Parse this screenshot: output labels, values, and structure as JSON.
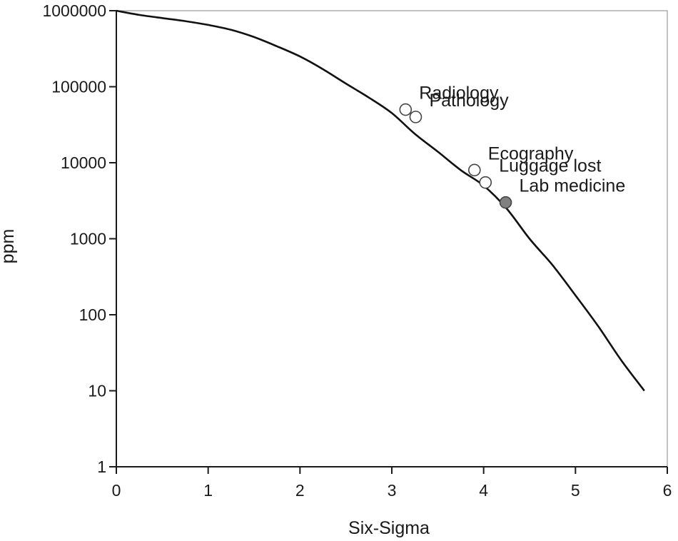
{
  "chart_data": {
    "type": "line",
    "xlabel": "Six-Sigma",
    "ylabel": "ppm",
    "x_scale": "linear",
    "y_scale": "log",
    "xlim": [
      0,
      6
    ],
    "ylim": [
      1,
      1000000
    ],
    "x_ticks": [
      "0",
      "1",
      "2",
      "3",
      "4",
      "5",
      "6"
    ],
    "y_ticks": [
      "1",
      "10",
      "100",
      "1000",
      "10000",
      "100000",
      "1000000"
    ],
    "grid": false,
    "series": [
      {
        "x": [
          0,
          0.25,
          0.5,
          0.75,
          1.0,
          1.25,
          1.5,
          1.75,
          2.0,
          2.25,
          2.5,
          2.75,
          3.0,
          3.25,
          3.5,
          3.75,
          4.0,
          4.25,
          4.5,
          4.75,
          5.0,
          5.25,
          5.5,
          5.75
        ],
        "y": [
          1000000,
          880000,
          800000,
          730000,
          650000,
          560000,
          450000,
          340000,
          250000,
          170000,
          110000,
          72000,
          45000,
          24000,
          14000,
          8000,
          5000,
          2500,
          1000,
          450,
          180,
          70,
          25,
          10
        ],
        "color": "#111111"
      }
    ],
    "points": [
      {
        "label": "Radiology",
        "x": 3.15,
        "y": 50000,
        "fill": "#ffffff"
      },
      {
        "label": "Pathology",
        "x": 3.26,
        "y": 40000,
        "fill": "#ffffff"
      },
      {
        "label": "Ecography",
        "x": 3.9,
        "y": 8000,
        "fill": "#ffffff"
      },
      {
        "label": "Luggage lost",
        "x": 4.02,
        "y": 5500,
        "fill": "#ffffff"
      },
      {
        "label": "Lab medicine",
        "x": 4.24,
        "y": 3000,
        "fill": "#808080"
      }
    ]
  }
}
